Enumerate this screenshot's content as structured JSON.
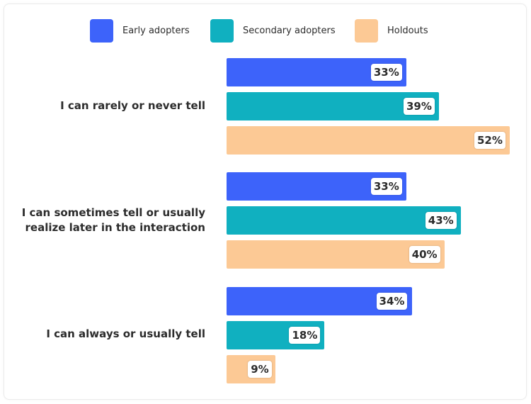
{
  "chart_data": {
    "type": "bar",
    "orientation": "horizontal",
    "categories": [
      "I can rarely or never tell",
      "I can sometimes tell or usually realize later in the interaction",
      "I can always or usually tell"
    ],
    "series": [
      {
        "name": "Early adopters",
        "color": "#3d63fa",
        "values": [
          33,
          33,
          34
        ]
      },
      {
        "name": "Secondary adopters",
        "color": "#10b0c0",
        "values": [
          39,
          43,
          18
        ]
      },
      {
        "name": "Holdouts",
        "color": "#fcc995",
        "values": [
          52,
          40,
          9
        ]
      }
    ],
    "value_suffix": "%",
    "legend": "top",
    "grid": false,
    "xlim": [
      0,
      52
    ]
  }
}
